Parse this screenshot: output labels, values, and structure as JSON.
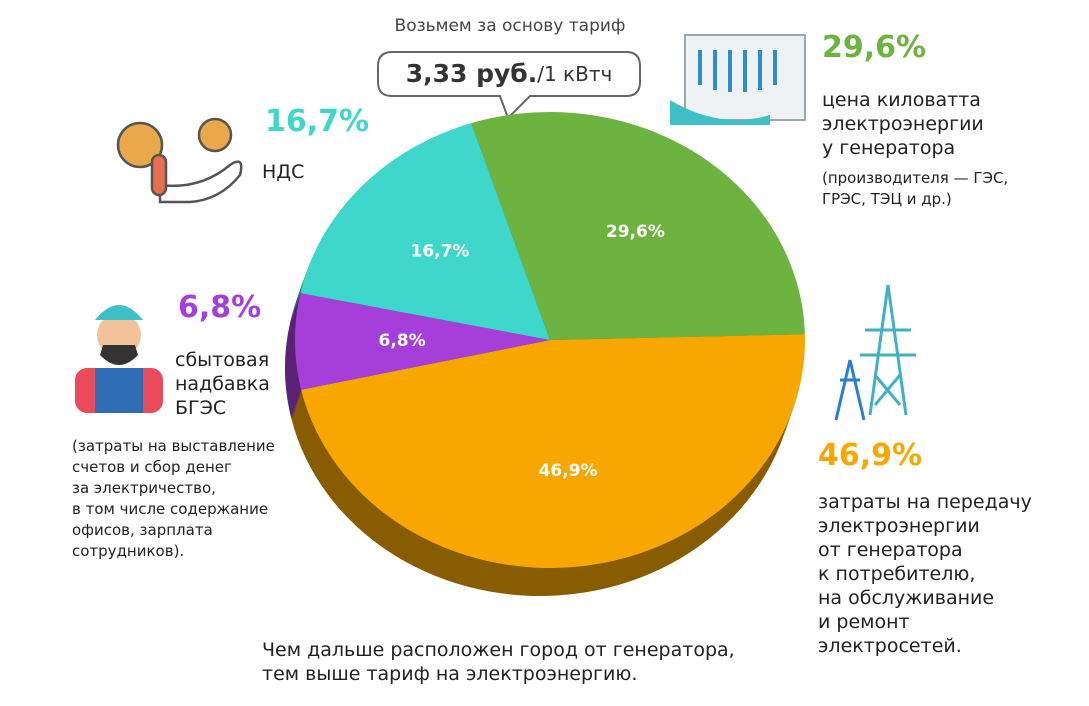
{
  "chart_data": {
    "type": "pie",
    "title": "Возьмем за основу тариф",
    "tariff": [
      "3,33 руб.",
      "/1 кВтч"
    ],
    "categories": [
      "цена киловатта\nэлектроэнергии\nу генератора",
      "затраты на передачу\nэлектроэнергии\nот генератора\nк потребителю,\nна обслуживание\nи ремонт\nэлектросетей.",
      "сбытовая\nнадбавка\nБГЭС",
      "НДС"
    ],
    "notes": [
      "(производителя — ГЭС,\nГРЭС, ТЭЦ и др.)",
      null,
      "(затраты на выставление\nсчетов и сбор денег\nза электричество,\nв том числе содержание\nофисов, зарплата\nсотрудников).",
      null
    ],
    "values": [
      29.6,
      46.9,
      6.8,
      16.7
    ],
    "value_labels": [
      "29,6%",
      "46,9%",
      "6,8%",
      "16,7%"
    ],
    "colors": [
      "#6db33f",
      "#f8a700",
      "#a63fd9",
      "#3fd6cb"
    ],
    "footnote": "Чем дальше расположен город от генератора,\nтем выше тариф на электроэнергию."
  }
}
